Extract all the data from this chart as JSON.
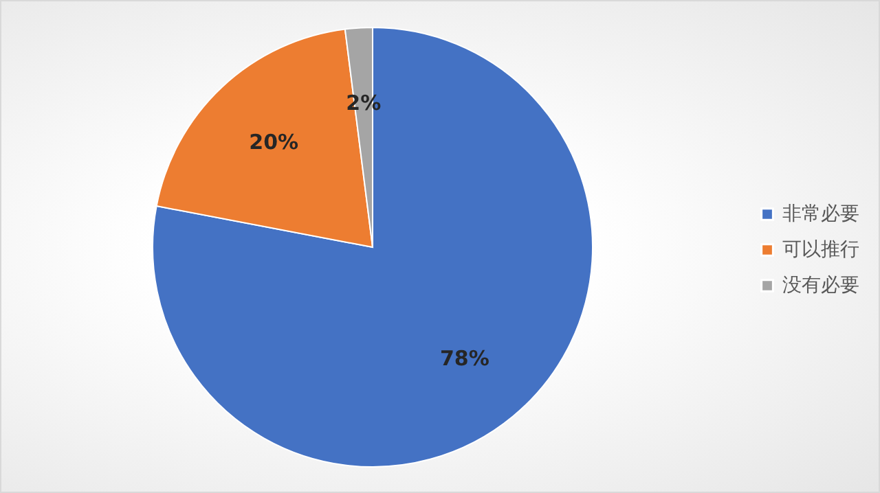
{
  "chart_data": {
    "type": "pie",
    "categories": [
      "非常必要",
      "可以推行",
      "没有必要"
    ],
    "values": [
      78,
      20,
      2
    ],
    "colors": [
      "#4472c4",
      "#ed7d31",
      "#a5a5a5"
    ],
    "value_labels": [
      "78%",
      "20%",
      "2%"
    ],
    "legend": "right"
  }
}
